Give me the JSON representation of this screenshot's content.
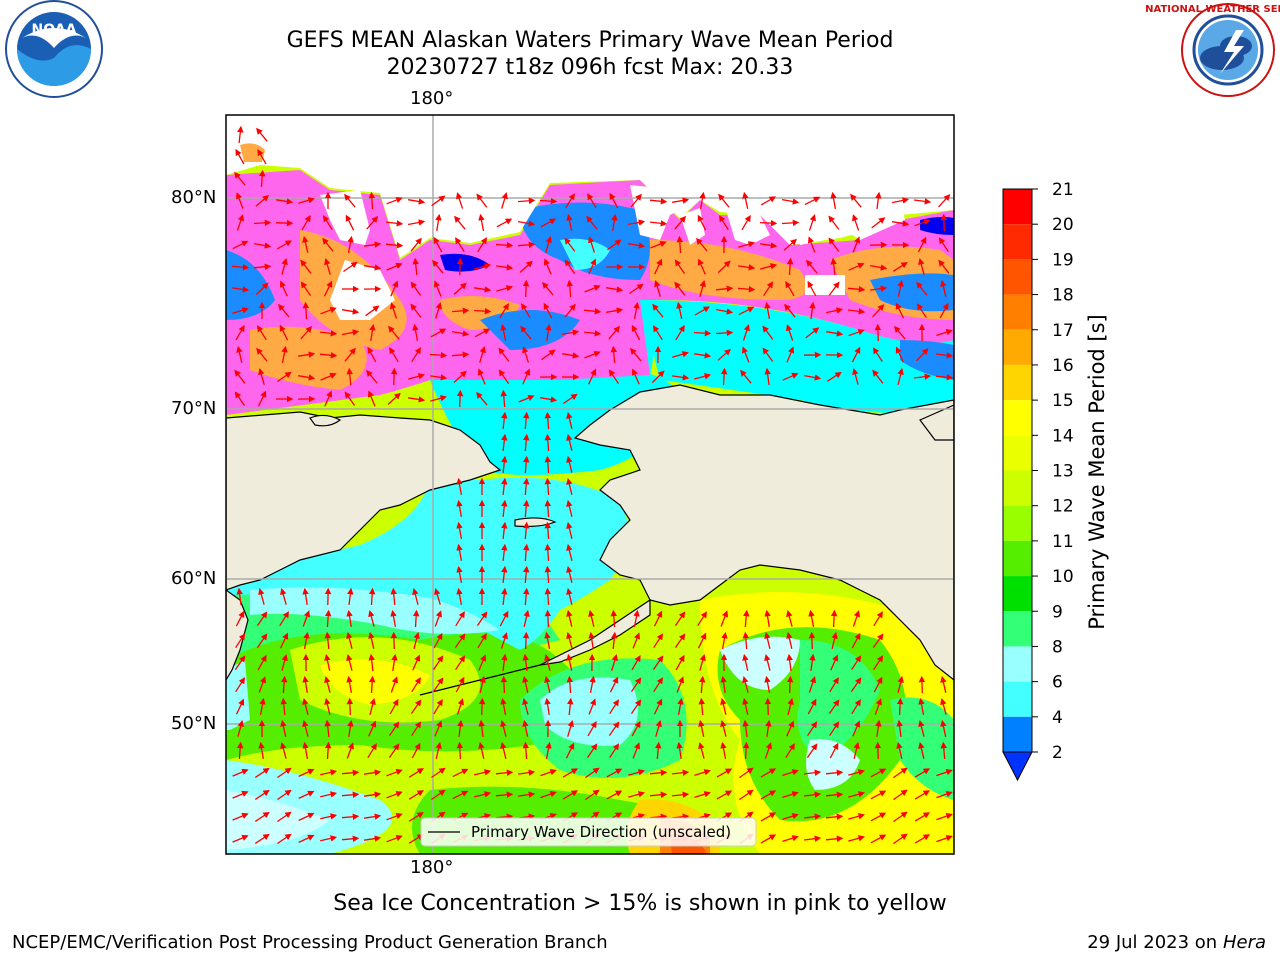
{
  "header": {
    "title_line1": "GEFS MEAN Alaskan Waters Primary Wave Mean Period",
    "title_line2": "20230727 t18z 096h fcst   Max: 20.33"
  },
  "logos": {
    "left": {
      "name": "noaa-logo",
      "text": "NOAA",
      "ring_text": "NATIONAL OCEANIC AND ATMOSPHERIC ADMINISTRATION",
      "bottom_text": "U.S. DEPARTMENT OF COMMERCE"
    },
    "right": {
      "name": "nws-logo",
      "ring_text": "NATIONAL WEATHER SERVICE"
    }
  },
  "map": {
    "lon_labels": [
      "180°",
      "180°"
    ],
    "lat_labels": [
      "80°N",
      "70°N",
      "60°N",
      "50°N"
    ],
    "legend_text": "Primary Wave Direction (unscaled)"
  },
  "colorbar": {
    "title": "Primary Wave Mean Period [s]",
    "ticks": [
      "21",
      "20",
      "19",
      "18",
      "17",
      "16",
      "15",
      "14",
      "13",
      "12",
      "11",
      "10",
      "9",
      "8",
      "6",
      "4",
      "2"
    ],
    "colors": [
      "#ff0000",
      "#ff2a00",
      "#ff5500",
      "#ff8000",
      "#ffaa00",
      "#ffd500",
      "#ffff00",
      "#eaff00",
      "#ccff00",
      "#99ff00",
      "#55ee00",
      "#00e000",
      "#33ff77",
      "#99ffff",
      "#44ffff",
      "#00ffff",
      "#00e5ff"
    ],
    "under_color": "#0033ff",
    "band_2_4_color": "#0080ff"
  },
  "notes": {
    "sea_ice": "Sea Ice Concentration > 15% is shown in pink to yellow"
  },
  "footer": {
    "left": "NCEP/EMC/Verification Post Processing Product Generation Branch",
    "date": "29 Jul 2023 on ",
    "host": "Hera"
  }
}
